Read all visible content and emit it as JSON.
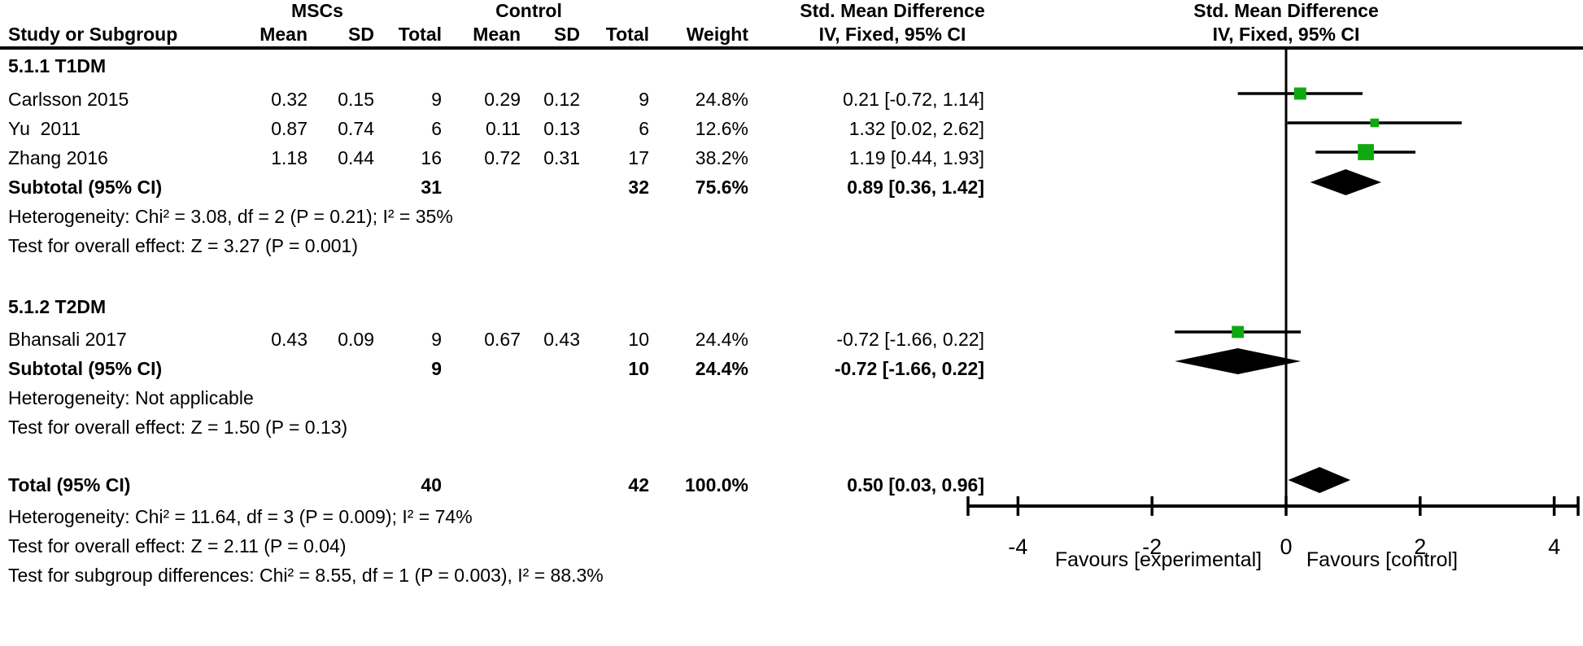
{
  "colors": {
    "marker_green": "#10a810",
    "ink": "#000000"
  },
  "header": {
    "group_experimental": "MSCs",
    "group_control": "Control",
    "smd_left": "Std. Mean Difference",
    "smd_right": "Std. Mean Difference",
    "method_left": "IV, Fixed, 95% CI",
    "method_right": "IV, Fixed, 95% CI",
    "study": "Study or Subgroup",
    "mean": "Mean",
    "sd": "SD",
    "total": "Total",
    "weight": "Weight"
  },
  "rows": {
    "section1": "5.1.1 T1DM",
    "carlsson": {
      "study": "Carlsson 2015",
      "m1": "0.32",
      "s1": "0.15",
      "t1": "9",
      "m2": "0.29",
      "s2": "0.12",
      "t2": "9",
      "w": "24.8%",
      "ci": "0.21 [-0.72, 1.14]"
    },
    "yu": {
      "study": "Yu  2011",
      "m1": "0.87",
      "s1": "0.74",
      "t1": "6",
      "m2": "0.11",
      "s2": "0.13",
      "t2": "6",
      "w": "12.6%",
      "ci": "1.32 [0.02, 2.62]"
    },
    "zhang": {
      "study": "Zhang 2016",
      "m1": "1.18",
      "s1": "0.44",
      "t1": "16",
      "m2": "0.72",
      "s2": "0.31",
      "t2": "17",
      "w": "38.2%",
      "ci": "1.19 [0.44, 1.93]"
    },
    "subtotal1": {
      "study": "Subtotal (95% CI)",
      "t1": "31",
      "t2": "32",
      "w": "75.6%",
      "ci": "0.89 [0.36, 1.42]"
    },
    "het1": "Heterogeneity: Chi² = 3.08, df = 2 (P = 0.21); I² = 35%",
    "test1": "Test for overall effect: Z = 3.27 (P = 0.001)",
    "section2": "5.1.2 T2DM",
    "bhansali": {
      "study": "Bhansali 2017",
      "m1": "0.43",
      "s1": "0.09",
      "t1": "9",
      "m2": "0.67",
      "s2": "0.43",
      "t2": "10",
      "w": "24.4%",
      "ci": "-0.72 [-1.66, 0.22]"
    },
    "subtotal2": {
      "study": "Subtotal (95% CI)",
      "t1": "9",
      "t2": "10",
      "w": "24.4%",
      "ci": "-0.72 [-1.66, 0.22]"
    },
    "het2": "Heterogeneity: Not applicable",
    "test2": "Test for overall effect: Z = 1.50 (P = 0.13)",
    "total": {
      "study": "Total (95% CI)",
      "t1": "40",
      "t2": "42",
      "w": "100.0%",
      "ci": "0.50 [0.03, 0.96]"
    },
    "het3": "Heterogeneity: Chi² = 11.64, df = 3 (P = 0.009); I² = 74%",
    "test3": "Test for overall effect: Z = 2.11 (P = 0.04)",
    "testsub": "Test for subgroup differences: Chi² = 8.55, df = 1 (P = 0.003), I² = 88.3%"
  },
  "chart_data": {
    "type": "forest",
    "effect_measure": "Std. Mean Difference (IV, Fixed, 95% CI)",
    "xlim": [
      -4,
      4
    ],
    "ticks": [
      -4,
      -2,
      0,
      2,
      4
    ],
    "tick_labels": [
      "-4",
      "-2",
      "0",
      "2",
      "4"
    ],
    "favours_left": "Favours [experimental]",
    "favours_right": "Favours [control]",
    "studies": [
      {
        "key": "carlsson",
        "label": "Carlsson 2015",
        "est": 0.21,
        "lo": -0.72,
        "hi": 1.14,
        "weight": 24.8
      },
      {
        "key": "yu",
        "label": "Yu 2011",
        "est": 1.32,
        "lo": 0.02,
        "hi": 2.62,
        "weight": 12.6
      },
      {
        "key": "zhang",
        "label": "Zhang 2016",
        "est": 1.19,
        "lo": 0.44,
        "hi": 1.93,
        "weight": 38.2
      },
      {
        "key": "bhansali",
        "label": "Bhansali 2017",
        "est": -0.72,
        "lo": -1.66,
        "hi": 0.22,
        "weight": 24.4
      }
    ],
    "diamonds": [
      {
        "key": "sub1",
        "label": "Subtotal T1DM (95% CI)",
        "est": 0.89,
        "lo": 0.36,
        "hi": 1.42
      },
      {
        "key": "sub2",
        "label": "Subtotal T2DM (95% CI)",
        "est": -0.72,
        "lo": -1.66,
        "hi": 0.22
      },
      {
        "key": "total",
        "label": "Total (95% CI)",
        "est": 0.5,
        "lo": 0.03,
        "hi": 0.96
      }
    ]
  }
}
